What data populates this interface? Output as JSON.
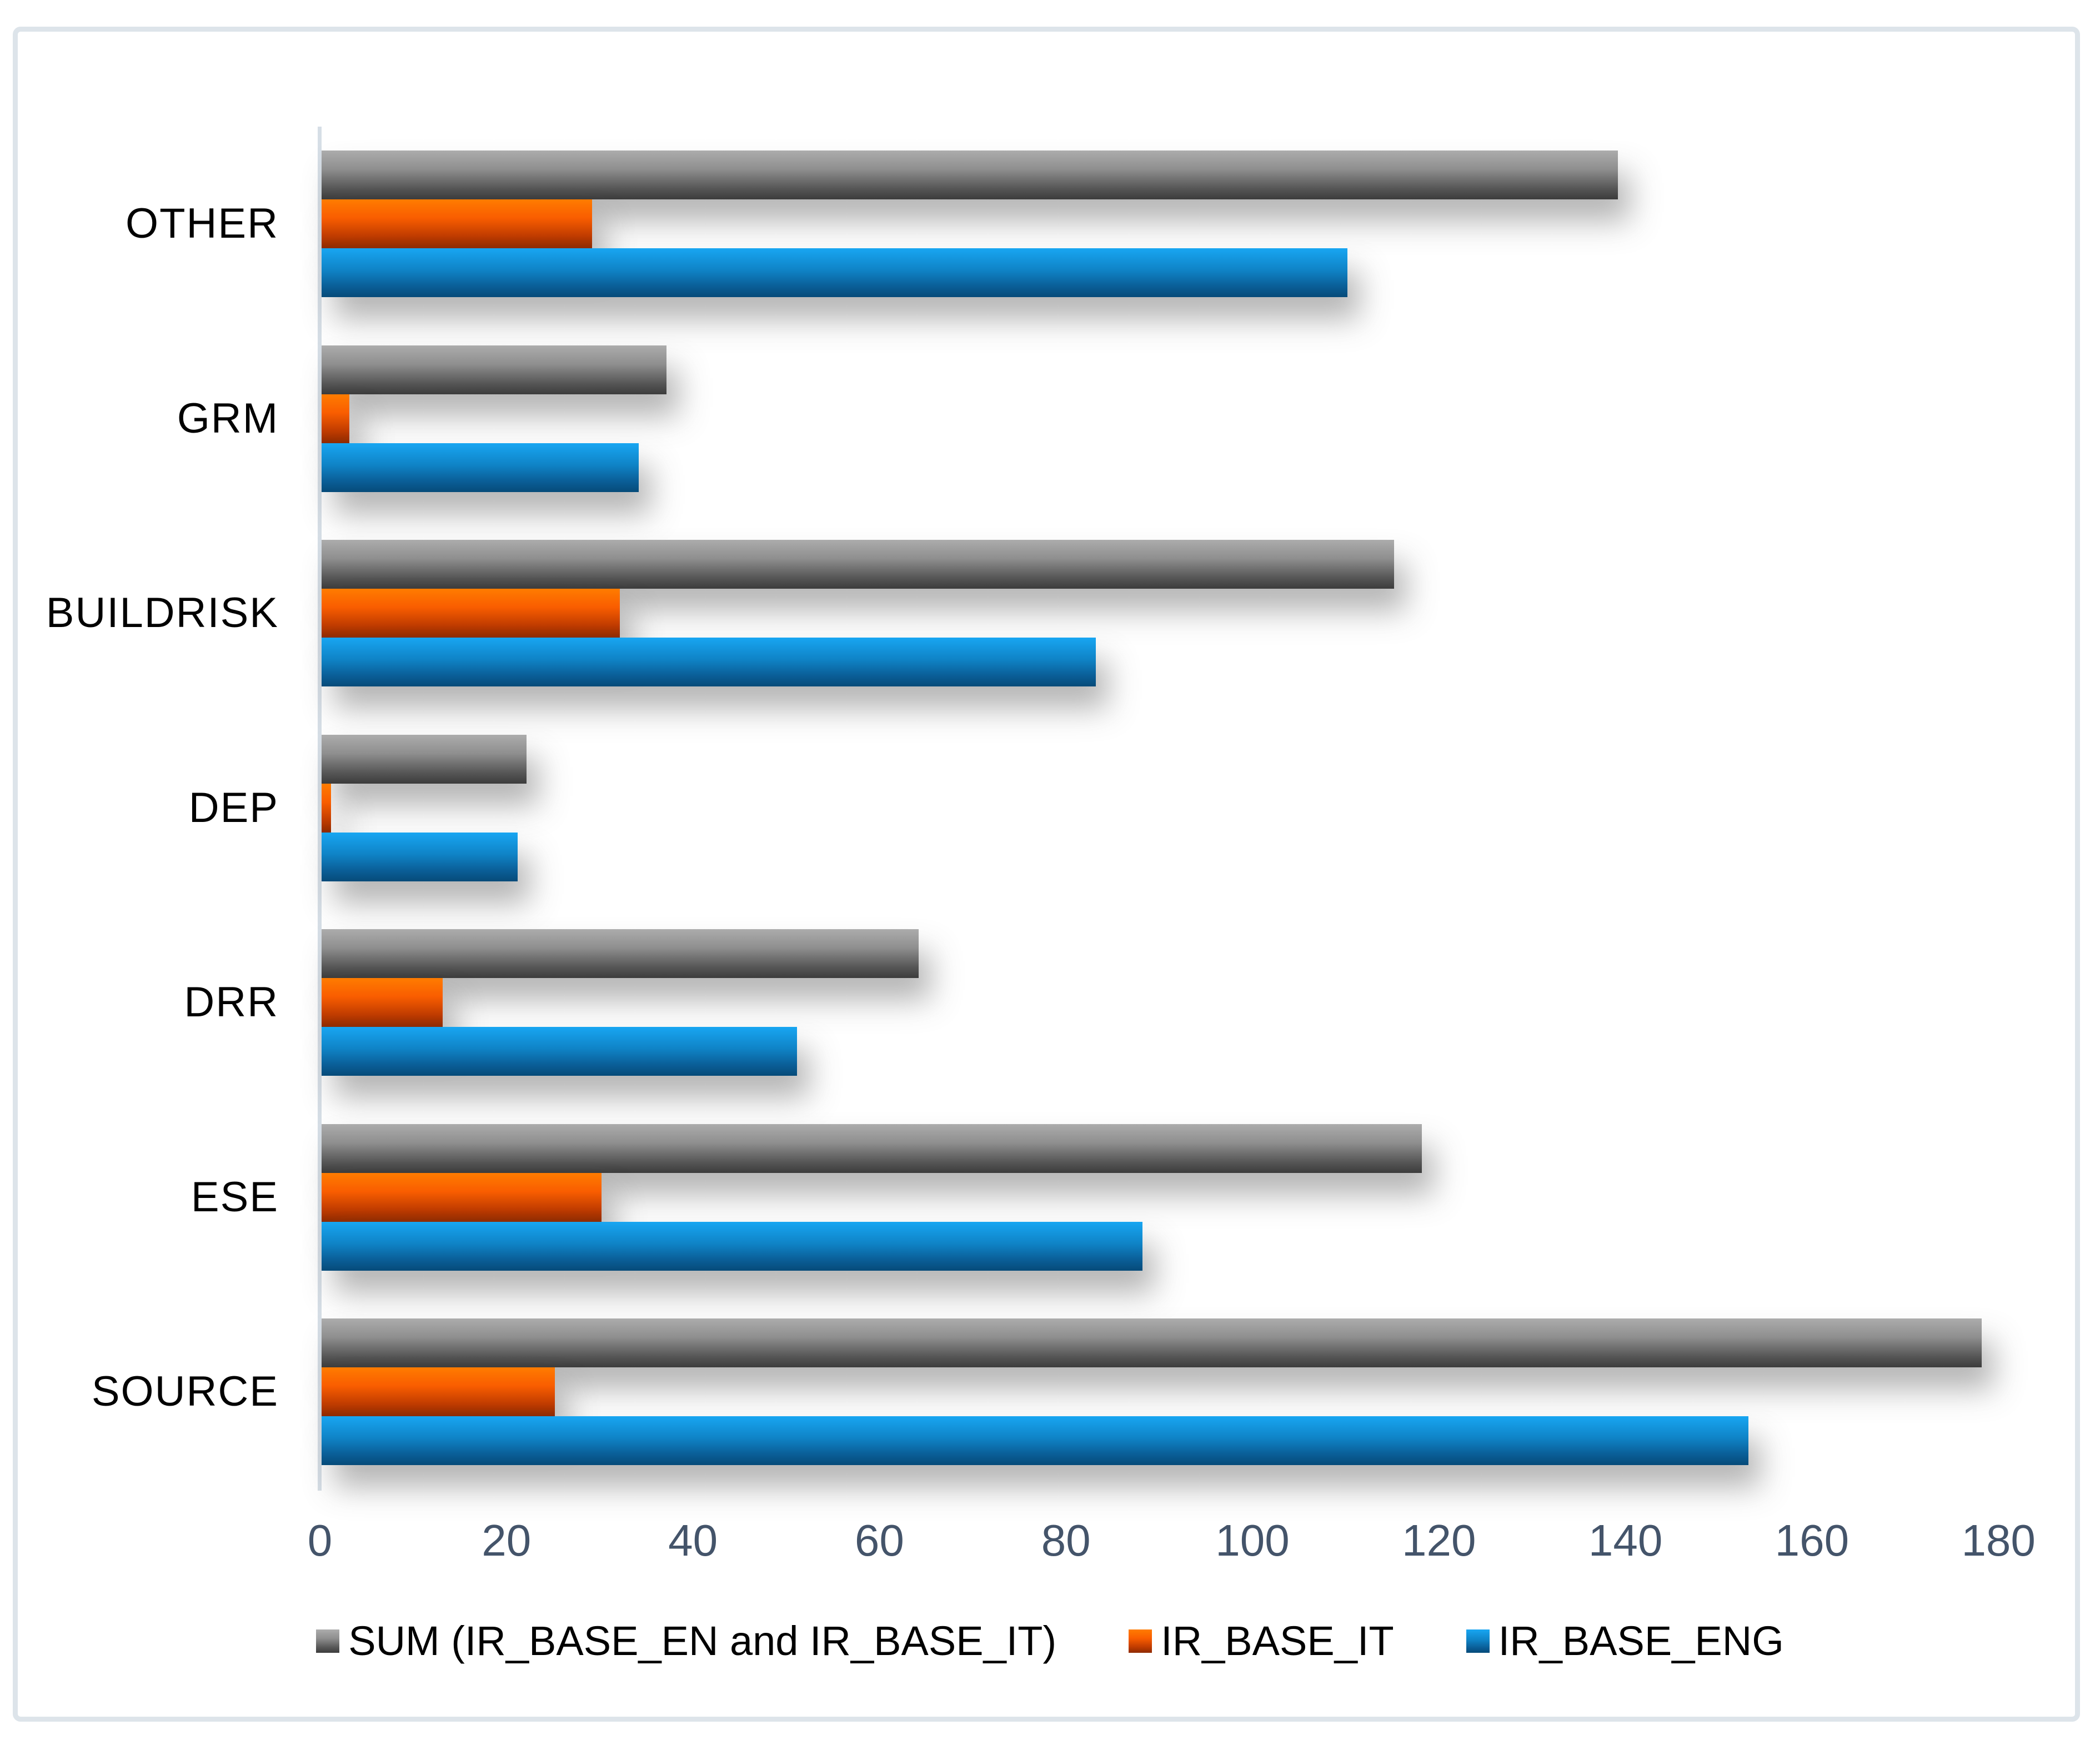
{
  "chart_data": {
    "type": "bar",
    "orientation": "horizontal",
    "title": "",
    "xlabel": "",
    "ylabel": "",
    "xlim": [
      0,
      180
    ],
    "x_ticks": [
      0,
      20,
      40,
      60,
      80,
      100,
      120,
      140,
      160,
      180
    ],
    "grid": false,
    "legend_position": "bottom",
    "categories": [
      "OTHER",
      "GRM",
      "BUILDRISK",
      "DEP",
      "DRR",
      "ESE",
      "SOURCE"
    ],
    "series": [
      {
        "name": "SUM (IR_BASE_EN and IR_BASE_IT)",
        "color_top": "#acacac",
        "color_bottom": "#3c3c3c",
        "values": [
          139,
          37,
          115,
          22,
          64,
          118,
          178
        ]
      },
      {
        "name": "IR_BASE_IT",
        "color_top": "#ff7c00",
        "color_bottom": "#8f2b00",
        "values": [
          29,
          3,
          32,
          1,
          13,
          30,
          25
        ]
      },
      {
        "name": "IR_BASE_ENG",
        "color_top": "#18a6f2",
        "color_bottom": "#064b79",
        "values": [
          110,
          34,
          83,
          21,
          51,
          88,
          153
        ]
      }
    ],
    "axis_colors": {
      "tick_label": "#44546a",
      "category_label": "#000000",
      "axis_line": "#d6dee6",
      "border": "#dde4ea"
    }
  }
}
